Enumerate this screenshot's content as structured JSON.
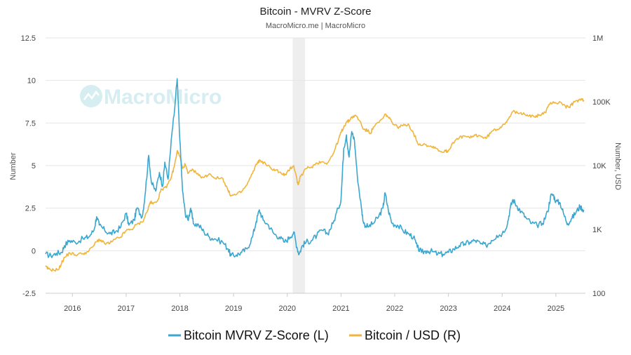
{
  "chart_data": {
    "type": "line",
    "title": "Bitcoin - MVRV Z-Score",
    "subtitle": "MacroMicro.me | MacroMicro",
    "watermark": "MacroMicro",
    "left_axis": {
      "label": "Number",
      "ylim": [
        -2.5,
        12.5
      ],
      "ticks": [
        -2.5,
        0,
        2.5,
        5,
        7.5,
        10,
        12.5
      ],
      "tick_labels": [
        "-2.5",
        "0",
        "2.5",
        "5",
        "7.5",
        "10",
        "12.5"
      ]
    },
    "right_axis": {
      "label": "Number, USD",
      "scale": "log",
      "ylim": [
        100,
        1000000
      ],
      "ticks": [
        100,
        1000,
        10000,
        100000,
        1000000
      ],
      "tick_labels": [
        "100",
        "1K",
        "10K",
        "100K",
        "1M"
      ]
    },
    "x_axis": {
      "xlim": [
        2015.5,
        2025.55
      ],
      "ticks": [
        2016,
        2017,
        2018,
        2019,
        2020,
        2021,
        2022,
        2023,
        2024,
        2025
      ],
      "tick_labels": [
        "2016",
        "2017",
        "2018",
        "2019",
        "2020",
        "2021",
        "2022",
        "2023",
        "2024",
        "2025"
      ]
    },
    "shaded_region": {
      "x": [
        2020.1,
        2020.33
      ],
      "color": "#eeeeee"
    },
    "grid": true,
    "legend_position": "bottom",
    "series": [
      {
        "name": "Bitcoin MVRV Z-Score (L)",
        "axis": "left",
        "color": "#3ba7cf",
        "points": [
          [
            2015.5,
            -0.2
          ],
          [
            2015.6,
            -0.3
          ],
          [
            2015.7,
            -0.15
          ],
          [
            2015.8,
            -0.1
          ],
          [
            2015.85,
            0.3
          ],
          [
            2015.95,
            0.6
          ],
          [
            2016.05,
            0.5
          ],
          [
            2016.2,
            0.7
          ],
          [
            2016.3,
            0.8
          ],
          [
            2016.4,
            1.2
          ],
          [
            2016.45,
            2.0
          ],
          [
            2016.5,
            1.5
          ],
          [
            2016.6,
            1.2
          ],
          [
            2016.7,
            1.0
          ],
          [
            2016.8,
            1.1
          ],
          [
            2016.9,
            1.4
          ],
          [
            2017.0,
            2.2
          ],
          [
            2017.05,
            1.5
          ],
          [
            2017.15,
            1.8
          ],
          [
            2017.2,
            2.5
          ],
          [
            2017.3,
            2.0
          ],
          [
            2017.35,
            3.2
          ],
          [
            2017.42,
            5.6
          ],
          [
            2017.47,
            4.0
          ],
          [
            2017.55,
            3.5
          ],
          [
            2017.62,
            4.6
          ],
          [
            2017.68,
            3.8
          ],
          [
            2017.72,
            5.2
          ],
          [
            2017.78,
            4.2
          ],
          [
            2017.85,
            6.8
          ],
          [
            2017.9,
            8.2
          ],
          [
            2017.95,
            10.1
          ],
          [
            2018.0,
            6.5
          ],
          [
            2018.05,
            3.5
          ],
          [
            2018.1,
            2.2
          ],
          [
            2018.15,
            1.8
          ],
          [
            2018.2,
            2.5
          ],
          [
            2018.25,
            1.6
          ],
          [
            2018.35,
            1.5
          ],
          [
            2018.45,
            1.1
          ],
          [
            2018.55,
            0.8
          ],
          [
            2018.65,
            0.7
          ],
          [
            2018.8,
            0.5
          ],
          [
            2018.9,
            0.1
          ],
          [
            2018.95,
            -0.3
          ],
          [
            2019.05,
            -0.25
          ],
          [
            2019.15,
            -0.1
          ],
          [
            2019.25,
            0.1
          ],
          [
            2019.35,
            0.8
          ],
          [
            2019.42,
            1.7
          ],
          [
            2019.48,
            2.4
          ],
          [
            2019.55,
            1.8
          ],
          [
            2019.65,
            1.5
          ],
          [
            2019.75,
            1.0
          ],
          [
            2019.85,
            0.8
          ],
          [
            2019.95,
            0.5
          ],
          [
            2020.05,
            0.8
          ],
          [
            2020.12,
            1.1
          ],
          [
            2020.18,
            0.2
          ],
          [
            2020.22,
            -0.2
          ],
          [
            2020.28,
            0.3
          ],
          [
            2020.35,
            0.5
          ],
          [
            2020.45,
            0.6
          ],
          [
            2020.55,
            0.9
          ],
          [
            2020.65,
            1.2
          ],
          [
            2020.75,
            1.0
          ],
          [
            2020.85,
            1.6
          ],
          [
            2020.95,
            2.5
          ],
          [
            2021.0,
            3.0
          ],
          [
            2021.05,
            6.0
          ],
          [
            2021.1,
            6.8
          ],
          [
            2021.15,
            5.5
          ],
          [
            2021.2,
            7.0
          ],
          [
            2021.25,
            6.5
          ],
          [
            2021.3,
            4.5
          ],
          [
            2021.38,
            2.5
          ],
          [
            2021.42,
            1.6
          ],
          [
            2021.5,
            1.4
          ],
          [
            2021.6,
            1.6
          ],
          [
            2021.7,
            2.0
          ],
          [
            2021.78,
            2.5
          ],
          [
            2021.82,
            3.4
          ],
          [
            2021.88,
            2.4
          ],
          [
            2021.95,
            1.6
          ],
          [
            2022.05,
            1.5
          ],
          [
            2022.15,
            1.2
          ],
          [
            2022.25,
            1.0
          ],
          [
            2022.35,
            0.8
          ],
          [
            2022.42,
            0.2
          ],
          [
            2022.5,
            -0.1
          ],
          [
            2022.6,
            0.0
          ],
          [
            2022.7,
            -0.05
          ],
          [
            2022.8,
            -0.2
          ],
          [
            2022.9,
            -0.2
          ],
          [
            2023.0,
            -0.1
          ],
          [
            2023.1,
            0.1
          ],
          [
            2023.2,
            0.3
          ],
          [
            2023.3,
            0.4
          ],
          [
            2023.4,
            0.5
          ],
          [
            2023.5,
            0.6
          ],
          [
            2023.6,
            0.4
          ],
          [
            2023.7,
            0.3
          ],
          [
            2023.8,
            0.6
          ],
          [
            2023.9,
            0.9
          ],
          [
            2024.0,
            1.0
          ],
          [
            2024.1,
            1.6
          ],
          [
            2024.15,
            2.5
          ],
          [
            2024.2,
            3.0
          ],
          [
            2024.28,
            2.6
          ],
          [
            2024.35,
            2.3
          ],
          [
            2024.45,
            1.9
          ],
          [
            2024.55,
            1.6
          ],
          [
            2024.65,
            1.5
          ],
          [
            2024.75,
            1.6
          ],
          [
            2024.85,
            2.3
          ],
          [
            2024.9,
            3.2
          ],
          [
            2024.95,
            3.3
          ],
          [
            2025.0,
            2.9
          ],
          [
            2025.08,
            2.8
          ],
          [
            2025.15,
            2.1
          ],
          [
            2025.22,
            1.6
          ],
          [
            2025.3,
            1.9
          ],
          [
            2025.38,
            2.3
          ],
          [
            2025.45,
            2.6
          ],
          [
            2025.52,
            2.4
          ]
        ]
      },
      {
        "name": "Bitcoin / USD (R)",
        "axis": "right",
        "color": "#f0b53c",
        "points": [
          [
            2015.5,
            260
          ],
          [
            2015.55,
            240
          ],
          [
            2015.65,
            230
          ],
          [
            2015.75,
            240
          ],
          [
            2015.8,
            300
          ],
          [
            2015.85,
            360
          ],
          [
            2015.95,
            430
          ],
          [
            2016.05,
            400
          ],
          [
            2016.2,
            420
          ],
          [
            2016.3,
            450
          ],
          [
            2016.45,
            640
          ],
          [
            2016.5,
            700
          ],
          [
            2016.6,
            600
          ],
          [
            2016.7,
            610
          ],
          [
            2016.8,
            700
          ],
          [
            2016.9,
            760
          ],
          [
            2017.0,
            960
          ],
          [
            2017.1,
            1000
          ],
          [
            2017.2,
            1200
          ],
          [
            2017.3,
            1300
          ],
          [
            2017.4,
            2000
          ],
          [
            2017.45,
            2700
          ],
          [
            2017.5,
            2500
          ],
          [
            2017.6,
            3000
          ],
          [
            2017.65,
            4300
          ],
          [
            2017.75,
            4500
          ],
          [
            2017.85,
            7000
          ],
          [
            2017.9,
            10000
          ],
          [
            2017.95,
            17000
          ],
          [
            2018.0,
            14000
          ],
          [
            2018.05,
            9000
          ],
          [
            2018.1,
            10500
          ],
          [
            2018.15,
            7500
          ],
          [
            2018.25,
            8500
          ],
          [
            2018.35,
            7000
          ],
          [
            2018.45,
            6500
          ],
          [
            2018.55,
            7500
          ],
          [
            2018.65,
            6400
          ],
          [
            2018.8,
            6300
          ],
          [
            2018.9,
            4000
          ],
          [
            2018.95,
            3400
          ],
          [
            2019.05,
            3500
          ],
          [
            2019.15,
            3900
          ],
          [
            2019.25,
            5000
          ],
          [
            2019.35,
            7500
          ],
          [
            2019.45,
            11500
          ],
          [
            2019.5,
            12000
          ],
          [
            2019.6,
            10500
          ],
          [
            2019.7,
            9000
          ],
          [
            2019.8,
            8500
          ],
          [
            2019.9,
            7300
          ],
          [
            2019.98,
            7200
          ],
          [
            2020.05,
            9000
          ],
          [
            2020.12,
            10000
          ],
          [
            2020.18,
            6000
          ],
          [
            2020.2,
            5000
          ],
          [
            2020.25,
            6800
          ],
          [
            2020.35,
            9000
          ],
          [
            2020.45,
            9500
          ],
          [
            2020.55,
            11000
          ],
          [
            2020.65,
            11500
          ],
          [
            2020.75,
            11000
          ],
          [
            2020.85,
            15000
          ],
          [
            2020.95,
            25000
          ],
          [
            2021.0,
            33000
          ],
          [
            2021.05,
            40000
          ],
          [
            2021.1,
            48000
          ],
          [
            2021.15,
            50000
          ],
          [
            2021.2,
            58000
          ],
          [
            2021.28,
            60000
          ],
          [
            2021.35,
            50000
          ],
          [
            2021.42,
            37000
          ],
          [
            2021.5,
            35000
          ],
          [
            2021.55,
            32000
          ],
          [
            2021.6,
            40000
          ],
          [
            2021.7,
            47000
          ],
          [
            2021.78,
            55000
          ],
          [
            2021.83,
            64000
          ],
          [
            2021.88,
            57000
          ],
          [
            2021.95,
            48000
          ],
          [
            2022.05,
            40000
          ],
          [
            2022.15,
            42000
          ],
          [
            2022.25,
            45000
          ],
          [
            2022.35,
            32000
          ],
          [
            2022.45,
            21000
          ],
          [
            2022.55,
            22000
          ],
          [
            2022.65,
            20000
          ],
          [
            2022.75,
            19500
          ],
          [
            2022.85,
            16500
          ],
          [
            2022.95,
            16800
          ],
          [
            2023.0,
            17000
          ],
          [
            2023.08,
            23000
          ],
          [
            2023.2,
            27000
          ],
          [
            2023.3,
            29000
          ],
          [
            2023.4,
            27000
          ],
          [
            2023.5,
            30000
          ],
          [
            2023.6,
            29000
          ],
          [
            2023.7,
            26500
          ],
          [
            2023.8,
            34000
          ],
          [
            2023.9,
            37000
          ],
          [
            2024.0,
            42000
          ],
          [
            2024.1,
            52000
          ],
          [
            2024.2,
            70000
          ],
          [
            2024.3,
            65000
          ],
          [
            2024.4,
            67000
          ],
          [
            2024.5,
            60000
          ],
          [
            2024.6,
            58000
          ],
          [
            2024.7,
            62000
          ],
          [
            2024.8,
            68000
          ],
          [
            2024.88,
            90000
          ],
          [
            2024.95,
            100000
          ],
          [
            2025.0,
            95000
          ],
          [
            2025.1,
            97000
          ],
          [
            2025.18,
            84000
          ],
          [
            2025.25,
            82000
          ],
          [
            2025.32,
            95000
          ],
          [
            2025.4,
            104000
          ],
          [
            2025.45,
            108000
          ],
          [
            2025.52,
            106000
          ]
        ]
      }
    ]
  }
}
